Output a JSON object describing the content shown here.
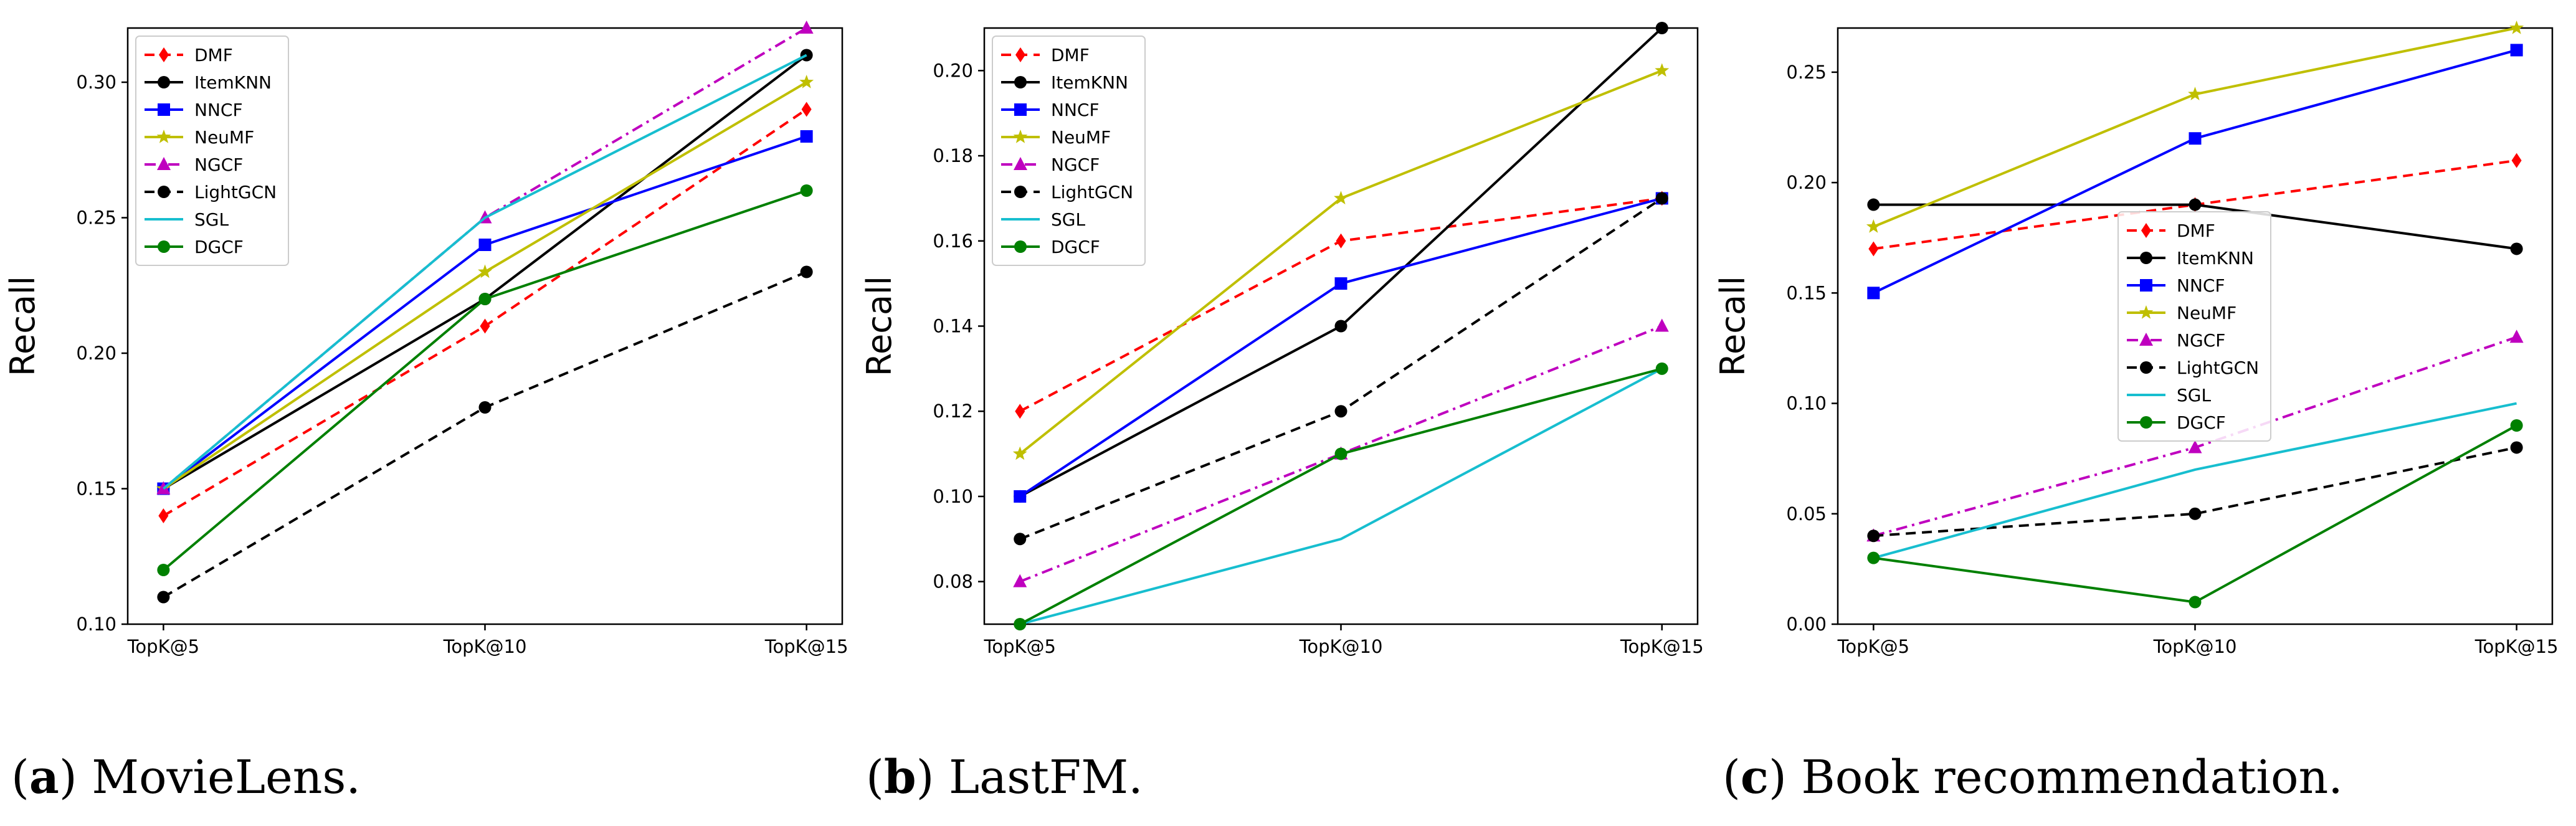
{
  "chart_data": [
    {
      "type": "line",
      "ylabel": "Recall",
      "categories": [
        "TopK@5",
        "TopK@10",
        "TopK@15"
      ],
      "ylim": [
        0.1,
        0.32
      ],
      "yticks": [
        0.1,
        0.15,
        0.2,
        0.25,
        0.3
      ],
      "ytick_labels": [
        "0.10",
        "0.15",
        "0.20",
        "0.25",
        "0.30"
      ],
      "legend_position": "top-left",
      "caption": {
        "letter": "a",
        "text": "MovieLens."
      },
      "series": [
        {
          "name": "DMF",
          "values": [
            0.14,
            0.21,
            0.29
          ]
        },
        {
          "name": "ItemKNN",
          "values": [
            0.15,
            0.22,
            0.31
          ]
        },
        {
          "name": "NNCF",
          "values": [
            0.15,
            0.24,
            0.28
          ]
        },
        {
          "name": "NeuMF",
          "values": [
            0.15,
            0.23,
            0.3
          ]
        },
        {
          "name": "NGCF",
          "values": [
            0.15,
            0.25,
            0.32
          ]
        },
        {
          "name": "LightGCN",
          "values": [
            0.11,
            0.18,
            0.23
          ]
        },
        {
          "name": "SGL",
          "values": [
            0.15,
            0.25,
            0.31
          ]
        },
        {
          "name": "DGCF",
          "values": [
            0.12,
            0.22,
            0.26
          ]
        }
      ]
    },
    {
      "type": "line",
      "ylabel": "Recall",
      "categories": [
        "TopK@5",
        "TopK@10",
        "TopK@15"
      ],
      "ylim": [
        0.07,
        0.21
      ],
      "yticks": [
        0.08,
        0.1,
        0.12,
        0.14,
        0.16,
        0.18,
        0.2
      ],
      "ytick_labels": [
        "0.08",
        "0.10",
        "0.12",
        "0.14",
        "0.16",
        "0.18",
        "0.20"
      ],
      "legend_position": "top-left",
      "caption": {
        "letter": "b",
        "text": "LastFM."
      },
      "series": [
        {
          "name": "DMF",
          "values": [
            0.12,
            0.16,
            0.17
          ]
        },
        {
          "name": "ItemKNN",
          "values": [
            0.1,
            0.14,
            0.21
          ]
        },
        {
          "name": "NNCF",
          "values": [
            0.1,
            0.15,
            0.17
          ]
        },
        {
          "name": "NeuMF",
          "values": [
            0.11,
            0.17,
            0.2
          ]
        },
        {
          "name": "NGCF",
          "values": [
            0.08,
            0.11,
            0.14
          ]
        },
        {
          "name": "LightGCN",
          "values": [
            0.09,
            0.12,
            0.17
          ]
        },
        {
          "name": "SGL",
          "values": [
            0.07,
            0.09,
            0.13
          ]
        },
        {
          "name": "DGCF",
          "values": [
            0.07,
            0.11,
            0.13
          ]
        }
      ]
    },
    {
      "type": "line",
      "ylabel": "Recall",
      "categories": [
        "TopK@5",
        "TopK@10",
        "TopK@15"
      ],
      "ylim": [
        0.0,
        0.27
      ],
      "yticks": [
        0.0,
        0.05,
        0.1,
        0.15,
        0.2,
        0.25
      ],
      "ytick_labels": [
        "0.00",
        "0.05",
        "0.10",
        "0.15",
        "0.20",
        "0.25"
      ],
      "legend_position": "center",
      "caption": {
        "letter": "c",
        "text": "Book recommendation."
      },
      "series": [
        {
          "name": "DMF",
          "values": [
            0.17,
            0.19,
            0.21
          ]
        },
        {
          "name": "ItemKNN",
          "values": [
            0.19,
            0.19,
            0.17
          ]
        },
        {
          "name": "NNCF",
          "values": [
            0.15,
            0.22,
            0.26
          ]
        },
        {
          "name": "NeuMF",
          "values": [
            0.18,
            0.24,
            0.27
          ]
        },
        {
          "name": "NGCF",
          "values": [
            0.04,
            0.08,
            0.13
          ]
        },
        {
          "name": "LightGCN",
          "values": [
            0.04,
            0.05,
            0.08
          ]
        },
        {
          "name": "SGL",
          "values": [
            0.03,
            0.07,
            0.1
          ]
        },
        {
          "name": "DGCF",
          "values": [
            0.03,
            0.01,
            0.09
          ]
        }
      ]
    }
  ],
  "series_style": {
    "DMF": {
      "color": "#ff0000",
      "dash": "dashed",
      "marker": "diamond"
    },
    "ItemKNN": {
      "color": "#000000",
      "dash": "solid",
      "marker": "circle"
    },
    "NNCF": {
      "color": "#0000ff",
      "dash": "solid",
      "marker": "square"
    },
    "NeuMF": {
      "color": "#bfbf00",
      "dash": "solid",
      "marker": "star"
    },
    "NGCF": {
      "color": "#bf00bf",
      "dash": "dashdot",
      "marker": "triangle"
    },
    "LightGCN": {
      "color": "#000000",
      "dash": "dashed",
      "marker": "circle"
    },
    "SGL": {
      "color": "#17becf",
      "dash": "solid",
      "marker": "none"
    },
    "DGCF": {
      "color": "#008000",
      "dash": "solid",
      "marker": "circle"
    }
  }
}
